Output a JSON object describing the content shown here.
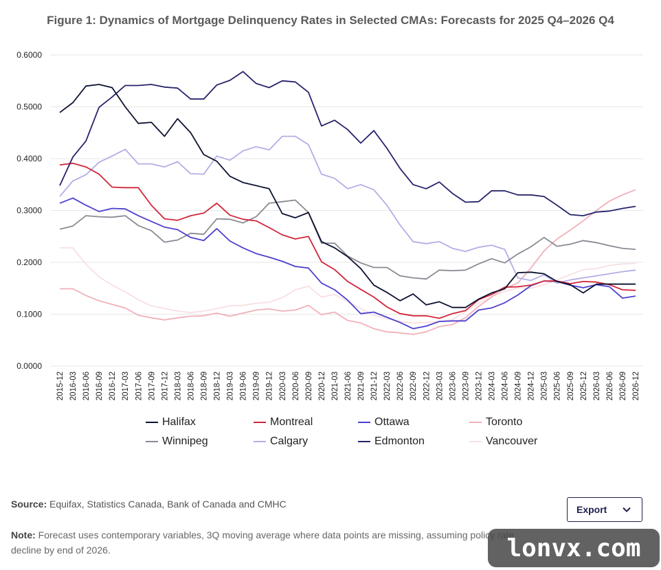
{
  "title": "Figure 1: Dynamics of Mortgage Delinquency Rates in Selected CMAs: Forecasts for 2025 Q4–2026 Q4",
  "source_label": "Source:",
  "source_text": "Equifax, Statistics Canada, Bank of Canada and CMHC",
  "note_label": "Note:",
  "note_text": "Forecast uses contemporary variables, 3Q moving average where data points are missing, assuming policy rate decline by end of 2026.",
  "export_label": "Export",
  "watermark": "lonvx.com",
  "chart_data": {
    "type": "line",
    "title": "Figure 1: Dynamics of Mortgage Delinquency Rates in Selected CMAs: Forecasts for 2025 Q4–2026 Q4",
    "xlabel": "",
    "ylabel": "",
    "ylim": [
      0,
      0.6
    ],
    "yticks": [
      "0.0000",
      "0.1000",
      "0.2000",
      "0.3000",
      "0.4000",
      "0.5000",
      "0.6000"
    ],
    "grid": true,
    "legend_position": "bottom",
    "x": [
      "2015-12",
      "2016-03",
      "2016-06",
      "2016-09",
      "2016-12",
      "2017-03",
      "2017-06",
      "2017-09",
      "2017-12",
      "2018-03",
      "2018-06",
      "2018-09",
      "2018-12",
      "2019-03",
      "2019-06",
      "2019-09",
      "2019-12",
      "2020-03",
      "2020-06",
      "2020-09",
      "2020-12",
      "2021-03",
      "2021-06",
      "2021-09",
      "2021-12",
      "2022-03",
      "2022-06",
      "2022-09",
      "2022-12",
      "2023-03",
      "2023-06",
      "2023-09",
      "2023-12",
      "2024-03",
      "2024-06",
      "2024-09",
      "2024-12",
      "2025-03",
      "2025-06",
      "2025-09",
      "2025-12",
      "2026-03",
      "2026-06",
      "2026-09",
      "2026-12"
    ],
    "series": [
      {
        "name": "Halifax",
        "color": "#0b1130",
        "values": [
          0.489,
          0.508,
          0.54,
          0.543,
          0.537,
          0.5,
          0.468,
          0.47,
          0.443,
          0.477,
          0.45,
          0.408,
          0.395,
          0.366,
          0.354,
          0.348,
          0.342,
          0.294,
          0.286,
          0.296,
          0.24,
          0.228,
          0.211,
          0.188,
          0.156,
          0.142,
          0.126,
          0.139,
          0.118,
          0.124,
          0.113,
          0.113,
          0.129,
          0.141,
          0.149,
          0.18,
          0.181,
          0.178,
          0.163,
          0.157,
          0.141,
          0.158,
          0.158,
          0.158,
          0.158
        ]
      },
      {
        "name": "Montreal",
        "color": "#d0263a",
        "values": [
          0.388,
          0.391,
          0.384,
          0.37,
          0.345,
          0.344,
          0.344,
          0.31,
          0.284,
          0.281,
          0.29,
          0.295,
          0.314,
          0.291,
          0.283,
          0.28,
          0.267,
          0.253,
          0.245,
          0.25,
          0.201,
          0.186,
          0.163,
          0.148,
          0.133,
          0.114,
          0.101,
          0.097,
          0.097,
          0.092,
          0.101,
          0.107,
          0.128,
          0.138,
          0.152,
          0.153,
          0.156,
          0.164,
          0.164,
          0.159,
          0.163,
          0.162,
          0.157,
          0.147,
          0.146
        ]
      },
      {
        "name": "Ottawa",
        "color": "#4b3fd0",
        "values": [
          0.314,
          0.324,
          0.31,
          0.298,
          0.304,
          0.303,
          0.29,
          0.279,
          0.268,
          0.263,
          0.248,
          0.242,
          0.265,
          0.241,
          0.228,
          0.217,
          0.21,
          0.202,
          0.192,
          0.189,
          0.16,
          0.147,
          0.127,
          0.101,
          0.104,
          0.094,
          0.084,
          0.072,
          0.077,
          0.086,
          0.087,
          0.087,
          0.108,
          0.112,
          0.122,
          0.137,
          0.155,
          0.164,
          0.163,
          0.156,
          0.151,
          0.157,
          0.153,
          0.131,
          0.135
        ]
      },
      {
        "name": "Toronto",
        "color": "#f0b0b8",
        "values": [
          0.149,
          0.149,
          0.136,
          0.126,
          0.119,
          0.112,
          0.098,
          0.093,
          0.089,
          0.093,
          0.096,
          0.097,
          0.102,
          0.096,
          0.102,
          0.108,
          0.11,
          0.106,
          0.108,
          0.117,
          0.099,
          0.104,
          0.088,
          0.083,
          0.072,
          0.066,
          0.064,
          0.061,
          0.066,
          0.076,
          0.08,
          0.093,
          0.115,
          0.133,
          0.15,
          0.16,
          0.189,
          0.222,
          0.245,
          0.262,
          0.28,
          0.3,
          0.318,
          0.33,
          0.34
        ]
      },
      {
        "name": "Winnipeg",
        "color": "#8a8a93",
        "values": [
          0.264,
          0.27,
          0.29,
          0.288,
          0.287,
          0.29,
          0.271,
          0.261,
          0.239,
          0.243,
          0.256,
          0.254,
          0.284,
          0.283,
          0.276,
          0.288,
          0.314,
          0.317,
          0.32,
          0.296,
          0.237,
          0.237,
          0.212,
          0.199,
          0.19,
          0.19,
          0.174,
          0.17,
          0.168,
          0.185,
          0.184,
          0.185,
          0.197,
          0.207,
          0.199,
          0.216,
          0.23,
          0.248,
          0.231,
          0.235,
          0.242,
          0.238,
          0.232,
          0.227,
          0.225
        ]
      },
      {
        "name": "Calgary",
        "color": "#b3ade5",
        "values": [
          0.327,
          0.357,
          0.369,
          0.393,
          0.405,
          0.418,
          0.39,
          0.39,
          0.384,
          0.394,
          0.371,
          0.37,
          0.405,
          0.397,
          0.415,
          0.423,
          0.417,
          0.443,
          0.443,
          0.427,
          0.37,
          0.362,
          0.342,
          0.35,
          0.34,
          0.31,
          0.272,
          0.24,
          0.236,
          0.24,
          0.227,
          0.221,
          0.229,
          0.233,
          0.225,
          0.17,
          0.165,
          0.176,
          0.16,
          0.166,
          0.17,
          0.174,
          0.178,
          0.182,
          0.185
        ]
      },
      {
        "name": "Edmonton",
        "color": "#25226a",
        "values": [
          0.348,
          0.403,
          0.434,
          0.499,
          0.519,
          0.541,
          0.541,
          0.543,
          0.538,
          0.536,
          0.515,
          0.515,
          0.542,
          0.551,
          0.568,
          0.545,
          0.537,
          0.55,
          0.548,
          0.528,
          0.463,
          0.474,
          0.456,
          0.43,
          0.454,
          0.42,
          0.381,
          0.35,
          0.342,
          0.355,
          0.333,
          0.316,
          0.317,
          0.338,
          0.338,
          0.33,
          0.33,
          0.327,
          0.31,
          0.292,
          0.29,
          0.297,
          0.299,
          0.304,
          0.308
        ]
      },
      {
        "name": "Vancouver",
        "color": "#f8dfe2",
        "values": [
          0.228,
          0.228,
          0.196,
          0.172,
          0.156,
          0.143,
          0.128,
          0.116,
          0.111,
          0.106,
          0.103,
          0.106,
          0.111,
          0.116,
          0.117,
          0.121,
          0.123,
          0.132,
          0.147,
          0.154,
          0.133,
          0.138,
          0.124,
          0.111,
          0.098,
          0.091,
          0.086,
          0.083,
          0.084,
          0.086,
          0.089,
          0.105,
          0.121,
          0.134,
          0.144,
          0.151,
          0.15,
          0.157,
          0.166,
          0.176,
          0.186,
          0.188,
          0.194,
          0.197,
          0.198
        ]
      }
    ]
  }
}
